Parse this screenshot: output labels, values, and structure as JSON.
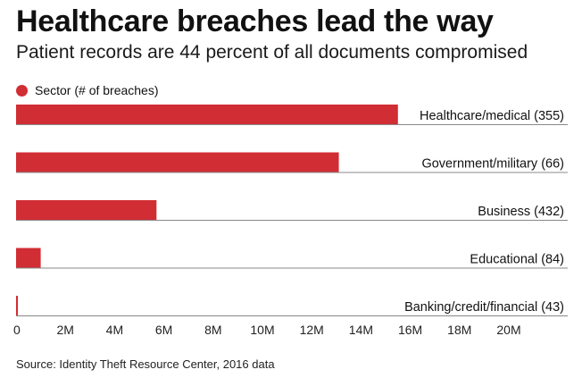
{
  "title": "Healthcare breaches lead the way",
  "subtitle": "Patient records are 44 percent of all documents compromised",
  "legend": {
    "label": "Sector (# of breaches)"
  },
  "source": "Source: Identity Theft Resource Center, 2016 data",
  "colors": {
    "bar": "#d12d34",
    "axis": "#888888"
  },
  "chart_data": {
    "type": "bar",
    "orientation": "horizontal",
    "categories": [
      "Healthcare/medical (355)",
      "Government/military (66)",
      "Business (432)",
      "Educational (84)",
      "Banking/credit/financial (43)"
    ],
    "values": [
      15500000,
      13100000,
      5700000,
      1000000,
      60000
    ],
    "xlim": [
      0,
      22000000
    ],
    "xticks": [
      0,
      2000000,
      4000000,
      6000000,
      8000000,
      10000000,
      12000000,
      14000000,
      16000000,
      18000000,
      20000000
    ],
    "xtick_labels": [
      "0",
      "2M",
      "4M",
      "6M",
      "8M",
      "10M",
      "12M",
      "14M",
      "16M",
      "18M",
      "20M"
    ],
    "legend_position": "top-left",
    "grid": false
  }
}
